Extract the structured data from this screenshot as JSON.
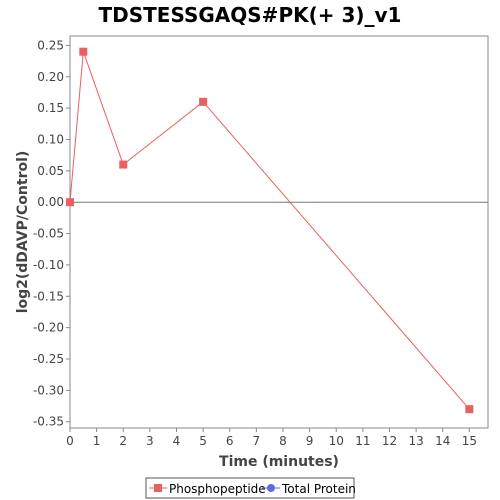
{
  "chart_data": {
    "type": "line",
    "title": "TDSTESSGAQS#PK(+ 3)_v1",
    "xlabel": "Time (minutes)",
    "ylabel": "log2(dDAVP/Control)",
    "xlim": [
      0,
      15.7
    ],
    "ylim": [
      -0.36,
      0.265
    ],
    "xticks": [
      0,
      1,
      2,
      3,
      4,
      5,
      6,
      7,
      8,
      9,
      10,
      11,
      12,
      13,
      14,
      15
    ],
    "xtick_labels": [
      "0",
      "1",
      "2",
      "3",
      "4",
      "5",
      "6",
      "7",
      "8",
      "9",
      "10",
      "11",
      "12",
      "13",
      "14",
      "15"
    ],
    "yticks": [
      0.25,
      0.2,
      0.15,
      0.1,
      0.05,
      0.0,
      -0.05,
      -0.1,
      -0.15,
      -0.2,
      -0.25,
      -0.3,
      -0.35
    ],
    "ytick_labels": [
      "0.25",
      "0.20",
      "0.15",
      "0.10",
      "0.05",
      "0.00",
      "-0.05",
      "-0.10",
      "-0.15",
      "-0.20",
      "-0.25",
      "-0.30",
      "-0.35"
    ],
    "zero_line": true,
    "grid": false,
    "legend_position": "bottom",
    "series": [
      {
        "name": "Phosphopeptide",
        "color": "#e8605f",
        "marker": "square",
        "x": [
          0,
          0.5,
          2,
          5,
          15
        ],
        "y": [
          0.0,
          0.24,
          0.06,
          0.16,
          -0.33
        ]
      },
      {
        "name": "Total Protein",
        "color": "#5b6be8",
        "marker": "circle",
        "x": [],
        "y": []
      }
    ]
  }
}
